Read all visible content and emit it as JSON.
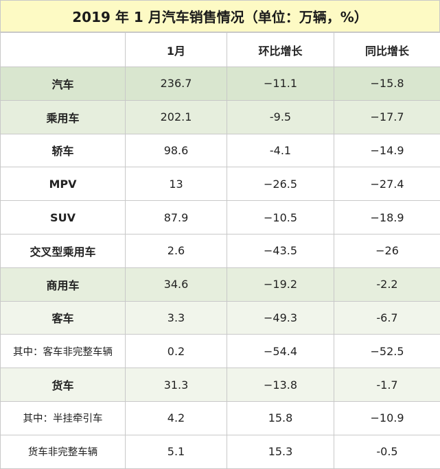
{
  "title": "2019 年 1 月汽车销售情况（单位：万辆，%）",
  "headers": [
    "",
    "1月",
    "环比增长",
    "同比增长"
  ],
  "rows": [
    {
      "name": "汽车",
      "m1": "236.7",
      "mom": "−11.1",
      "yoy": "−15.8"
    },
    {
      "name": "乘用车",
      "m1": "202.1",
      "mom": "-9.5",
      "yoy": "−17.7"
    },
    {
      "name": "轿车",
      "m1": "98.6",
      "mom": "-4.1",
      "yoy": "−14.9"
    },
    {
      "name": "MPV",
      "m1": "13",
      "mom": "−26.5",
      "yoy": "−27.4"
    },
    {
      "name": "SUV",
      "m1": "87.9",
      "mom": "−10.5",
      "yoy": "−18.9"
    },
    {
      "name": "交叉型乘用车",
      "m1": "2.6",
      "mom": "−43.5",
      "yoy": "−26"
    },
    {
      "name": "商用车",
      "m1": "34.6",
      "mom": "−19.2",
      "yoy": "-2.2"
    },
    {
      "name": "客车",
      "m1": "3.3",
      "mom": "−49.3",
      "yoy": "-6.7"
    },
    {
      "name": "其中：客车非完整车辆",
      "m1": "0.2",
      "mom": "−54.4",
      "yoy": "−52.5"
    },
    {
      "name": "货车",
      "m1": "31.3",
      "mom": "−13.8",
      "yoy": "-1.7"
    },
    {
      "name": "其中：半挂牵引车",
      "m1": "4.2",
      "mom": "15.8",
      "yoy": "−10.9"
    },
    {
      "name": "货车非完整车辆",
      "m1": "5.1",
      "mom": "15.3",
      "yoy": "-0.5"
    }
  ]
}
